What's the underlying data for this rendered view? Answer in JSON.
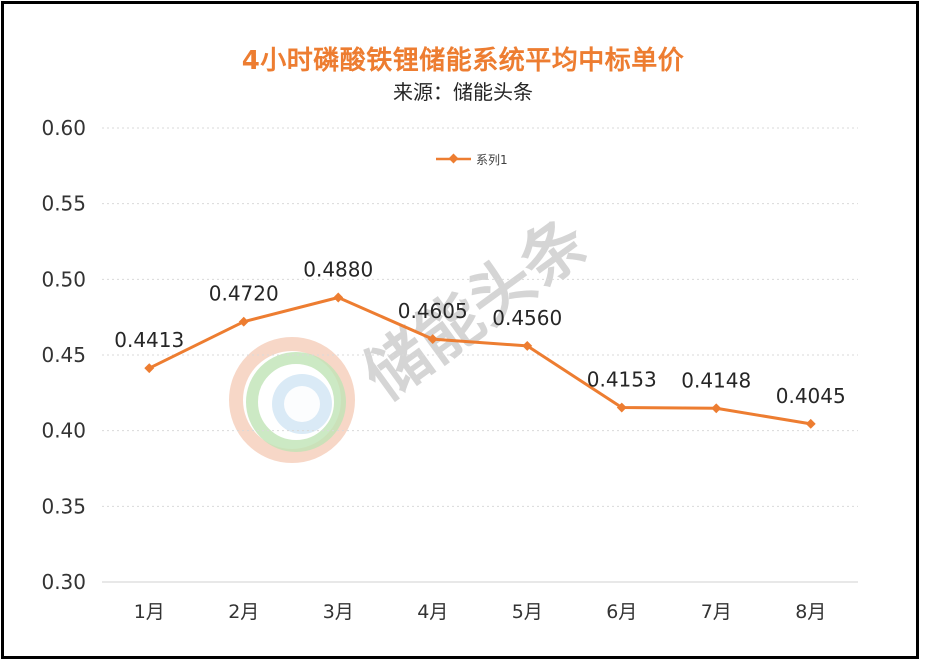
{
  "chart_data": {
    "type": "line",
    "title": "4小时磷酸铁锂储能系统平均中标单价",
    "subtitle": "来源：储能头条",
    "categories": [
      "1月",
      "2月",
      "3月",
      "4月",
      "5月",
      "6月",
      "7月",
      "8月"
    ],
    "series": [
      {
        "name": "系列1",
        "values": [
          0.4413,
          0.472,
          0.488,
          0.4605,
          0.456,
          0.4153,
          0.4148,
          0.4045
        ],
        "labels": [
          "0.4413",
          "0.4720",
          "0.4880",
          "0.4605",
          "0.4560",
          "0.4153",
          "0.4148",
          "0.4045"
        ]
      }
    ],
    "ylim": [
      0.3,
      0.6
    ],
    "yticks": [
      "0.30",
      "0.35",
      "0.40",
      "0.45",
      "0.50",
      "0.55",
      "0.60"
    ],
    "grid": true,
    "legend_position": "top-center",
    "colors": {
      "series": "#ED7D31",
      "title": "#ED7D31",
      "grid": "#d9d9d9"
    }
  },
  "watermark": {
    "text": "储能头条"
  }
}
